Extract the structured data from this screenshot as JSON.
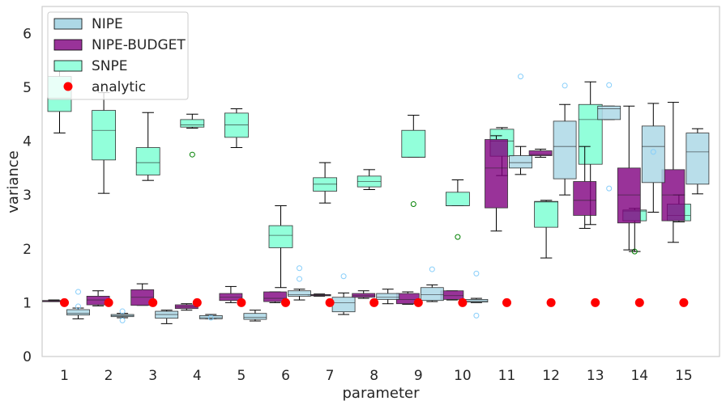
{
  "chart_data": {
    "type": "box",
    "xlabel": "parameter",
    "ylabel": "variance",
    "categories": [
      "1",
      "2",
      "3",
      "4",
      "5",
      "6",
      "7",
      "8",
      "9",
      "10",
      "11",
      "12",
      "13",
      "14",
      "15"
    ],
    "ylim": [
      0,
      6.5
    ],
    "yticks": [
      "0",
      "1",
      "2",
      "3",
      "4",
      "5",
      "6"
    ],
    "grid": false,
    "legend": {
      "placement": "top-left",
      "entries": [
        "NIPE",
        "NIPE-BUDGET",
        "SNPE",
        "analytic"
      ]
    },
    "colors": {
      "NIPE": "#add8e6",
      "NIPE-BUDGET": "#800080",
      "SNPE": "#7fffd4",
      "analytic": "#ff0000",
      "snpe_flier": "#008000",
      "nipe_flier": "#87cefa"
    },
    "series": [
      {
        "name": "SNPE",
        "boxes": [
          {
            "x": 1,
            "q1": 4.55,
            "med": 4.8,
            "q3": 5.2,
            "lo": 4.15,
            "hi": 5.3,
            "fliers": []
          },
          {
            "x": 2,
            "q1": 3.65,
            "med": 4.2,
            "q3": 4.57,
            "lo": 3.03,
            "hi": 4.9,
            "fliers": []
          },
          {
            "x": 3,
            "q1": 3.37,
            "med": 3.6,
            "q3": 3.88,
            "lo": 3.27,
            "hi": 4.53,
            "fliers": []
          },
          {
            "x": 4,
            "q1": 4.26,
            "med": 4.3,
            "q3": 4.4,
            "lo": 4.24,
            "hi": 4.5,
            "fliers": [
              3.75
            ]
          },
          {
            "x": 5,
            "q1": 4.07,
            "med": 4.3,
            "q3": 4.52,
            "lo": 3.88,
            "hi": 4.6,
            "fliers": []
          },
          {
            "x": 6,
            "q1": 2.02,
            "med": 2.25,
            "q3": 2.43,
            "lo": 1.28,
            "hi": 2.8,
            "fliers": []
          },
          {
            "x": 7,
            "q1": 3.07,
            "med": 3.2,
            "q3": 3.32,
            "lo": 2.85,
            "hi": 3.6,
            "fliers": []
          },
          {
            "x": 8,
            "q1": 3.15,
            "med": 3.25,
            "q3": 3.35,
            "lo": 3.1,
            "hi": 3.47,
            "fliers": []
          },
          {
            "x": 9,
            "q1": 3.7,
            "med": 3.7,
            "q3": 4.2,
            "lo": 3.7,
            "hi": 4.48,
            "fliers": [
              2.83
            ]
          },
          {
            "x": 10,
            "q1": 2.8,
            "med": 2.8,
            "q3": 3.05,
            "lo": 2.8,
            "hi": 3.28,
            "fliers": [
              2.22
            ]
          },
          {
            "x": 11,
            "q1": 3.72,
            "med": 4.0,
            "q3": 4.22,
            "lo": 3.36,
            "hi": 4.25,
            "fliers": []
          },
          {
            "x": 12,
            "q1": 2.4,
            "med": 2.87,
            "q3": 2.88,
            "lo": 1.83,
            "hi": 2.9,
            "fliers": []
          },
          {
            "x": 13,
            "q1": 3.57,
            "med": 4.4,
            "q3": 4.68,
            "lo": 2.45,
            "hi": 5.1,
            "fliers": []
          },
          {
            "x": 14,
            "q1": 2.52,
            "med": 2.7,
            "q3": 2.72,
            "lo": 1.95,
            "hi": 2.75,
            "fliers": [
              1.95
            ]
          },
          {
            "x": 15,
            "q1": 2.52,
            "med": 2.62,
            "q3": 2.83,
            "lo": 2.5,
            "hi": 3.0,
            "fliers": []
          }
        ]
      },
      {
        "name": "NIPE-BUDGET",
        "boxes": [
          {
            "x": 1,
            "q1": 1.03,
            "med": 1.03,
            "q3": 1.04,
            "lo": 1.02,
            "hi": 1.05,
            "fliers": []
          },
          {
            "x": 2,
            "q1": 0.96,
            "med": 1.05,
            "q3": 1.12,
            "lo": 0.94,
            "hi": 1.22,
            "fliers": []
          },
          {
            "x": 3,
            "q1": 0.95,
            "med": 1.1,
            "q3": 1.24,
            "lo": 0.95,
            "hi": 1.35,
            "fliers": []
          },
          {
            "x": 4,
            "q1": 0.89,
            "med": 0.92,
            "q3": 0.96,
            "lo": 0.86,
            "hi": 0.98,
            "fliers": []
          },
          {
            "x": 5,
            "q1": 1.04,
            "med": 1.1,
            "q3": 1.17,
            "lo": 1.0,
            "hi": 1.3,
            "fliers": []
          },
          {
            "x": 6,
            "q1": 1.02,
            "med": 1.08,
            "q3": 1.2,
            "lo": 1.0,
            "hi": 1.2,
            "fliers": []
          },
          {
            "x": 7,
            "q1": 1.13,
            "med": 1.14,
            "q3": 1.15,
            "lo": 1.12,
            "hi": 1.16,
            "fliers": []
          },
          {
            "x": 8,
            "q1": 1.1,
            "med": 1.13,
            "q3": 1.17,
            "lo": 1.08,
            "hi": 1.22,
            "fliers": []
          },
          {
            "x": 9,
            "q1": 0.98,
            "med": 1.06,
            "q3": 1.17,
            "lo": 0.97,
            "hi": 1.2,
            "fliers": []
          },
          {
            "x": 10,
            "q1": 1.06,
            "med": 1.13,
            "q3": 1.22,
            "lo": 1.05,
            "hi": 1.22,
            "fliers": []
          },
          {
            "x": 11,
            "q1": 2.76,
            "med": 3.5,
            "q3": 4.03,
            "lo": 2.33,
            "hi": 4.1,
            "fliers": []
          },
          {
            "x": 12,
            "q1": 3.73,
            "med": 3.75,
            "q3": 3.82,
            "lo": 3.7,
            "hi": 3.85,
            "fliers": []
          },
          {
            "x": 13,
            "q1": 2.62,
            "med": 2.9,
            "q3": 3.25,
            "lo": 2.38,
            "hi": 3.9,
            "fliers": []
          },
          {
            "x": 14,
            "q1": 2.48,
            "med": 3.0,
            "q3": 3.5,
            "lo": 1.98,
            "hi": 4.65,
            "fliers": []
          },
          {
            "x": 15,
            "q1": 2.52,
            "med": 3.0,
            "q3": 3.47,
            "lo": 2.12,
            "hi": 4.72,
            "fliers": []
          }
        ]
      },
      {
        "name": "NIPE",
        "boxes": [
          {
            "x": 1,
            "q1": 0.77,
            "med": 0.8,
            "q3": 0.87,
            "lo": 0.7,
            "hi": 0.9,
            "fliers": [
              1.2,
              0.93
            ]
          },
          {
            "x": 2,
            "q1": 0.74,
            "med": 0.76,
            "q3": 0.78,
            "lo": 0.72,
            "hi": 0.8,
            "fliers": [
              0.67,
              0.84
            ]
          },
          {
            "x": 3,
            "q1": 0.71,
            "med": 0.78,
            "q3": 0.84,
            "lo": 0.61,
            "hi": 0.86,
            "fliers": []
          },
          {
            "x": 4,
            "q1": 0.7,
            "med": 0.72,
            "q3": 0.76,
            "lo": 0.7,
            "hi": 0.78,
            "fliers": [
              0.72
            ]
          },
          {
            "x": 5,
            "q1": 0.69,
            "med": 0.73,
            "q3": 0.8,
            "lo": 0.66,
            "hi": 0.86,
            "fliers": []
          },
          {
            "x": 6,
            "q1": 1.12,
            "med": 1.15,
            "q3": 1.22,
            "lo": 1.05,
            "hi": 1.25,
            "fliers": [
              1.64,
              1.44
            ]
          },
          {
            "x": 7,
            "q1": 0.83,
            "med": 1.0,
            "q3": 1.1,
            "lo": 0.78,
            "hi": 1.18,
            "fliers": [
              1.49
            ]
          },
          {
            "x": 8,
            "q1": 1.06,
            "med": 1.1,
            "q3": 1.17,
            "lo": 0.98,
            "hi": 1.25,
            "fliers": []
          },
          {
            "x": 9,
            "q1": 1.04,
            "med": 1.15,
            "q3": 1.28,
            "lo": 1.02,
            "hi": 1.33,
            "fliers": [
              1.62
            ]
          },
          {
            "x": 10,
            "q1": 1.01,
            "med": 1.03,
            "q3": 1.06,
            "lo": 1.0,
            "hi": 1.08,
            "fliers": [
              1.54,
              0.76
            ]
          },
          {
            "x": 11,
            "q1": 3.5,
            "med": 3.6,
            "q3": 3.73,
            "lo": 3.38,
            "hi": 3.9,
            "fliers": [
              5.2
            ]
          },
          {
            "x": 12,
            "q1": 3.3,
            "med": 3.9,
            "q3": 4.37,
            "lo": 3.0,
            "hi": 4.68,
            "fliers": [
              5.03
            ]
          },
          {
            "x": 13,
            "q1": 4.4,
            "med": 4.6,
            "q3": 4.65,
            "lo": 4.4,
            "hi": 4.65,
            "fliers": [
              5.04,
              3.12
            ]
          },
          {
            "x": 14,
            "q1": 3.23,
            "med": 3.9,
            "q3": 4.28,
            "lo": 2.68,
            "hi": 4.7,
            "fliers": [
              3.8
            ]
          },
          {
            "x": 15,
            "q1": 3.2,
            "med": 3.8,
            "q3": 4.15,
            "lo": 3.02,
            "hi": 4.23,
            "fliers": []
          }
        ]
      },
      {
        "name": "analytic",
        "x": [
          1,
          2,
          3,
          4,
          5,
          6,
          7,
          8,
          9,
          10,
          11,
          12,
          13,
          14,
          15
        ],
        "values": [
          1,
          1,
          1,
          1,
          1,
          1,
          1,
          1,
          1,
          1,
          1,
          1,
          1,
          1,
          1
        ]
      }
    ]
  }
}
